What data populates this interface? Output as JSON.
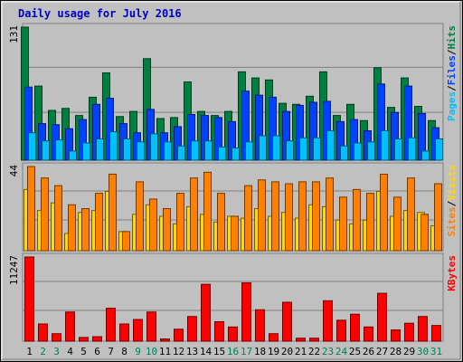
{
  "chart_data": [
    {
      "type": "bar",
      "title": "Daily usage for July 2016",
      "categories": [
        "1",
        "2",
        "3",
        "4",
        "5",
        "6",
        "7",
        "8",
        "9",
        "10",
        "11",
        "12",
        "13",
        "14",
        "15",
        "16",
        "17",
        "18",
        "19",
        "20",
        "21",
        "22",
        "23",
        "24",
        "25",
        "26",
        "27",
        "28",
        "29",
        "30",
        "31"
      ],
      "weekend_days": [
        2,
        3,
        9,
        10,
        16,
        17,
        23,
        24,
        30,
        31
      ],
      "ymax_label": "131",
      "ymax": 131,
      "legend": [
        {
          "name": "Hits",
          "color": "#008040"
        },
        {
          "name": "/",
          "color": "#000000"
        },
        {
          "name": "Files",
          "color": "#0040ff"
        },
        {
          "name": "/",
          "color": "#000000"
        },
        {
          "name": "Pages",
          "color": "#00c0ff"
        }
      ],
      "series": [
        {
          "name": "Hits",
          "color": "#008040",
          "values": [
            131,
            73,
            49,
            51,
            44,
            62,
            86,
            43,
            48,
            100,
            41,
            42,
            77,
            48,
            44,
            48,
            87,
            81,
            79,
            56,
            55,
            63,
            87,
            44,
            55,
            39,
            91,
            52,
            81,
            53,
            39
          ]
        },
        {
          "name": "Files",
          "color": "#0040ff",
          "values": [
            72,
            36,
            35,
            31,
            40,
            55,
            61,
            36,
            27,
            50,
            27,
            33,
            45,
            44,
            42,
            38,
            68,
            64,
            62,
            48,
            54,
            57,
            58,
            38,
            40,
            29,
            75,
            47,
            73,
            46,
            32
          ]
        },
        {
          "name": "Pages",
          "color": "#00c0ff",
          "values": [
            27,
            19,
            20,
            9,
            17,
            21,
            28,
            21,
            18,
            26,
            18,
            14,
            19,
            19,
            13,
            12,
            18,
            24,
            24,
            19,
            22,
            22,
            29,
            14,
            17,
            18,
            29,
            21,
            22,
            9,
            21
          ]
        }
      ]
    },
    {
      "type": "bar",
      "ymax_label": "44",
      "ymax": 44,
      "legend": [
        {
          "name": "Visits",
          "color": "#ffd800"
        },
        {
          "name": "/",
          "color": "#000000"
        },
        {
          "name": "Sites",
          "color": "#ff8000"
        }
      ],
      "series": [
        {
          "name": "Visits",
          "color": "#ffd800",
          "values": [
            32,
            21,
            25,
            9,
            20,
            21,
            31,
            10,
            19,
            24,
            18,
            14,
            23,
            19,
            15,
            18,
            17,
            22,
            18,
            20,
            17,
            24,
            23,
            16,
            14,
            16,
            31,
            18,
            21,
            20,
            13
          ]
        },
        {
          "name": "Sites",
          "color": "#ff8000",
          "values": [
            44,
            38,
            34,
            24,
            22,
            30,
            40,
            10,
            36,
            27,
            22,
            30,
            38,
            41,
            30,
            18,
            34,
            37,
            36,
            35,
            36,
            36,
            38,
            28,
            32,
            30,
            40,
            28,
            38,
            19,
            35
          ]
        }
      ]
    },
    {
      "type": "bar",
      "ymax_label": "11247",
      "ymax": 11247,
      "legend": [
        {
          "name": "KBytes",
          "color": "#ff0000"
        }
      ],
      "series": [
        {
          "name": "KBytes",
          "color": "#ff0000",
          "values": [
            11247,
            2300,
            1000,
            3900,
            500,
            600,
            4400,
            2300,
            2900,
            3900,
            300,
            1600,
            3300,
            7600,
            2600,
            1900,
            7800,
            4200,
            1000,
            5200,
            400,
            400,
            5400,
            2800,
            3600,
            1900,
            6400,
            1500,
            2400,
            3300,
            2100
          ]
        }
      ]
    }
  ]
}
